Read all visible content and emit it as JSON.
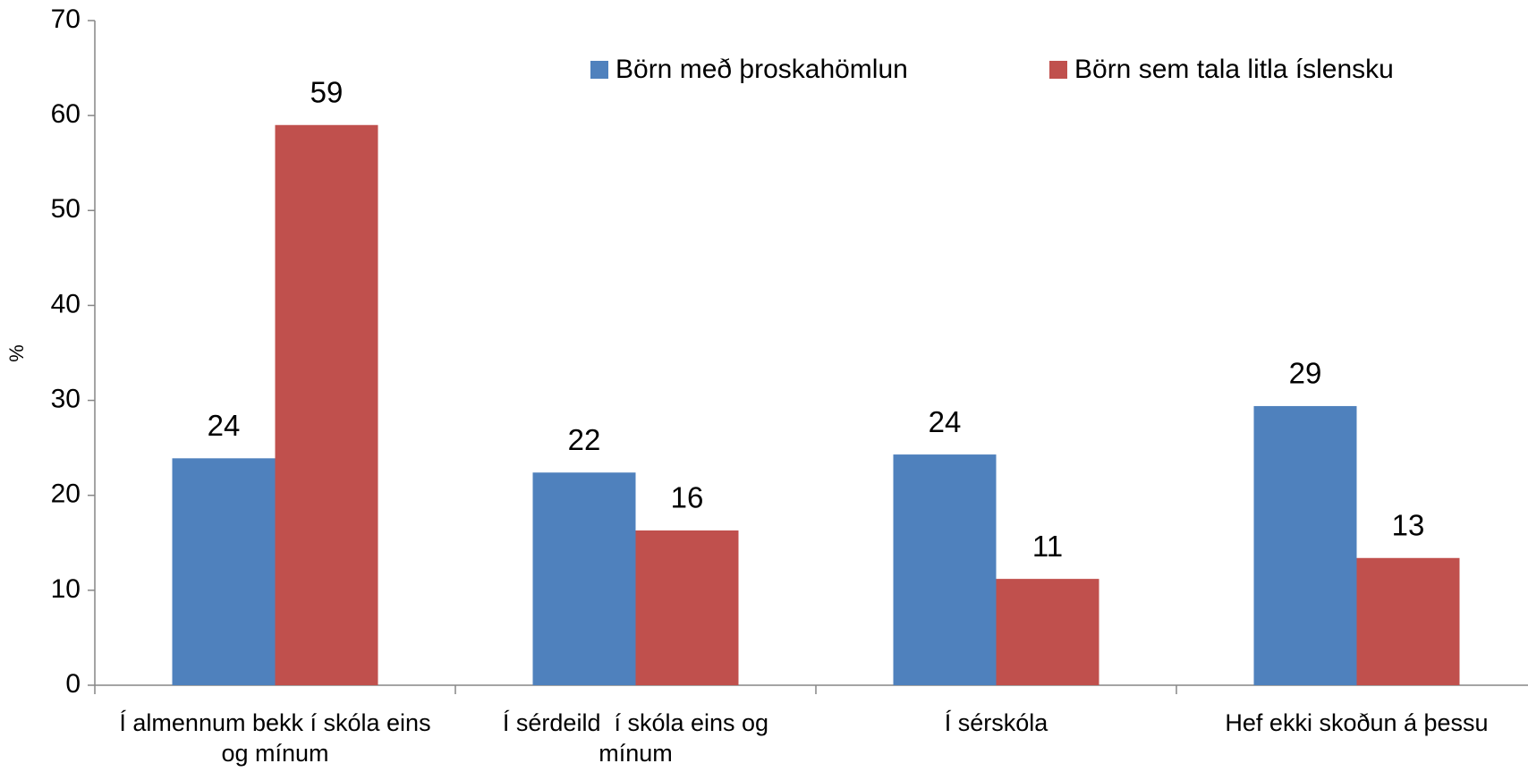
{
  "chart_data": {
    "type": "bar",
    "y_label": "%",
    "categories": [
      "Í almennum bekk í skóla eins og mínum",
      "Í sérdeild  í skóla eins og mínum",
      "Í sérskóla",
      "Hef ekki skoðun á þessu"
    ],
    "series": [
      {
        "name": "Börn með þroskahömlun",
        "color": "#4f81bd",
        "values": [
          23.9,
          22.4,
          24.3,
          29.4
        ],
        "value_labels": [
          "24",
          "22",
          "24",
          "29"
        ]
      },
      {
        "name": "Börn sem tala litla íslensku",
        "color": "#c0504d",
        "values": [
          59,
          16.3,
          11.2,
          13.4
        ],
        "value_labels": [
          "59",
          "16",
          "11",
          "13"
        ]
      }
    ],
    "ylim": [
      0,
      70
    ],
    "yticks": [
      0,
      10,
      20,
      30,
      40,
      50,
      60,
      70
    ],
    "grid": false,
    "legend": "top"
  }
}
